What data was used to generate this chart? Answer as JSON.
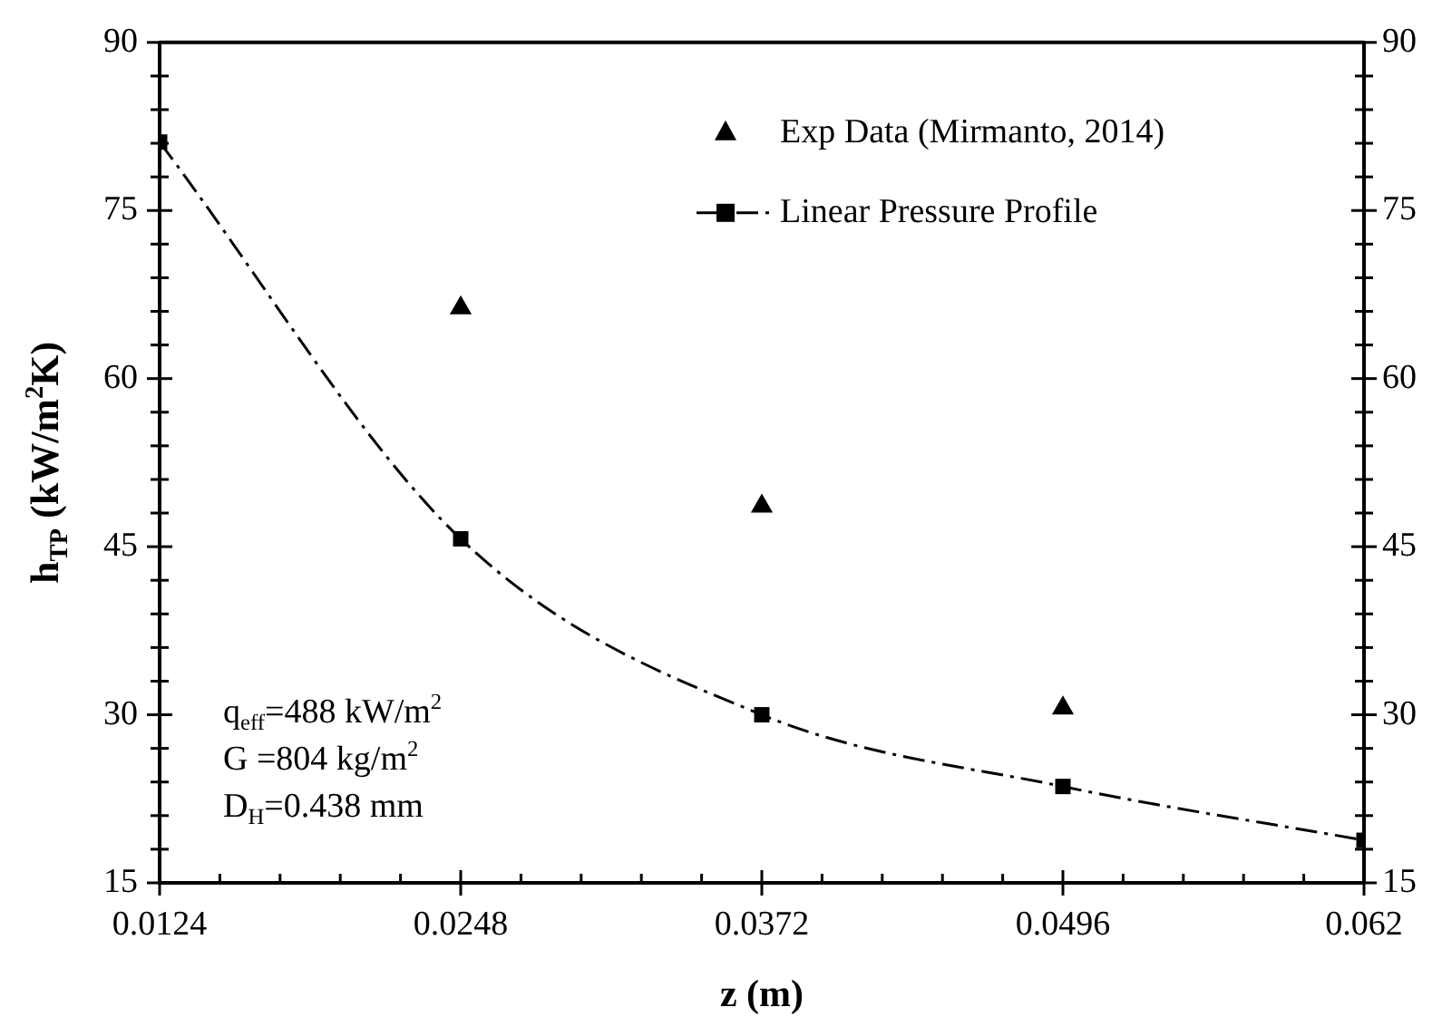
{
  "chart_data": {
    "type": "scatter",
    "xlabel": "z (m)",
    "ylabel": "h$_{TP}$ (kW/m$^{2}$K)",
    "xlim": [
      0.0124,
      0.062
    ],
    "xticks": [
      0.0124,
      {
        "value": 0.01488,
        "label": null
      },
      {
        "value": 0.01736,
        "label": null
      },
      {
        "value": 0.01984,
        "label": null
      },
      {
        "value": 0.02232,
        "label": null
      },
      0.0248,
      {
        "value": 0.02728,
        "label": null
      },
      {
        "value": 0.02976,
        "label": null
      },
      {
        "value": 0.03224,
        "label": null
      },
      {
        "value": 0.03472,
        "label": null
      },
      0.0372,
      {
        "value": 0.03968,
        "label": null
      },
      {
        "value": 0.04216,
        "label": null
      },
      {
        "value": 0.04464,
        "label": null
      },
      {
        "value": 0.04712,
        "label": null
      },
      0.0496,
      {
        "value": 0.05208,
        "label": null
      },
      {
        "value": 0.05456,
        "label": null
      },
      {
        "value": 0.05704,
        "label": null
      },
      {
        "value": 0.05952,
        "label": null
      },
      0.062
    ],
    "ylim": [
      15,
      90
    ],
    "yticks": [
      15,
      {
        "value": 18,
        "label": null
      },
      {
        "value": 21,
        "label": null
      },
      {
        "value": 24,
        "label": null
      },
      {
        "value": 27,
        "label": null
      },
      30,
      {
        "value": 33,
        "label": null
      },
      {
        "value": 36,
        "label": null
      },
      {
        "value": 39,
        "label": null
      },
      {
        "value": 42,
        "label": null
      },
      45,
      {
        "value": 48,
        "label": null
      },
      {
        "value": 51,
        "label": null
      },
      {
        "value": 54,
        "label": null
      },
      {
        "value": 57,
        "label": null
      },
      60,
      {
        "value": 63,
        "label": null
      },
      {
        "value": 66,
        "label": null
      },
      {
        "value": 69,
        "label": null
      },
      {
        "value": 72,
        "label": null
      },
      75,
      {
        "value": 78,
        "label": null
      },
      {
        "value": 81,
        "label": null
      },
      {
        "value": 84,
        "label": null
      },
      {
        "value": 87,
        "label": null
      },
      90
    ],
    "y2lim": [
      15,
      90
    ],
    "y2ticks": [
      15,
      {
        "value": 18,
        "label": null
      },
      {
        "value": 21,
        "label": null
      },
      {
        "value": 24,
        "label": null
      },
      {
        "value": 27,
        "label": null
      },
      30,
      {
        "value": 33,
        "label": null
      },
      {
        "value": 36,
        "label": null
      },
      {
        "value": 39,
        "label": null
      },
      {
        "value": 42,
        "label": null
      },
      45,
      {
        "value": 48,
        "label": null
      },
      {
        "value": 51,
        "label": null
      },
      {
        "value": 54,
        "label": null
      },
      {
        "value": 57,
        "label": null
      },
      60,
      {
        "value": 63,
        "label": null
      },
      {
        "value": 66,
        "label": null
      },
      {
        "value": 69,
        "label": null
      },
      {
        "value": 72,
        "label": null
      },
      75,
      {
        "value": 78,
        "label": null
      },
      {
        "value": 81,
        "label": null
      },
      {
        "value": 84,
        "label": null
      },
      {
        "value": 87,
        "label": null
      },
      90
    ],
    "legend": "top right",
    "series": [
      {
        "name": "Exp Data (Mirmanto, 2014)",
        "marker": "triangle",
        "color": "#000000",
        "x": [
          0.0248,
          0.0372,
          0.0496
        ],
        "values": [
          66.3,
          48.6,
          30.6
        ]
      },
      {
        "name": "Linear Pressure Profile",
        "type": "line",
        "marker": "square",
        "line_style": "dashed",
        "color": "#000000",
        "x": [
          0.0124,
          0.0248,
          0.0372,
          0.0496,
          0.062
        ],
        "values": [
          81.1,
          45.7,
          30,
          23.6,
          18.8
        ]
      }
    ],
    "annotations": [
      "q$_{eff}$=488 kW/m$^{2}$",
      "G =804 kg/m$^{2}$",
      "D$_{H}$=0.438 mm"
    ]
  }
}
